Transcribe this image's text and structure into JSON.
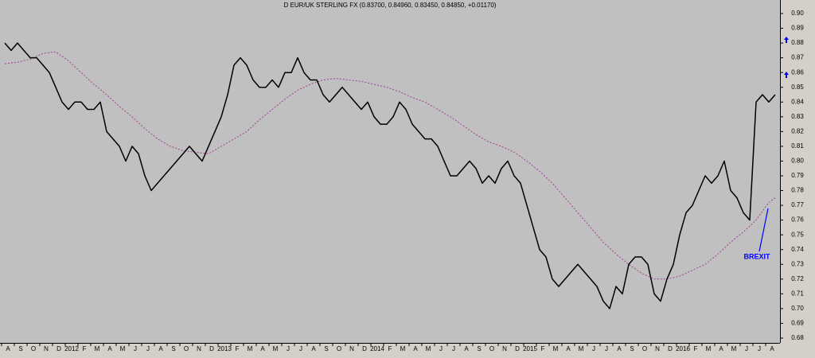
{
  "chart_data": {
    "type": "line",
    "title": "D EUR/UK STERLING FX (0.83700, 0.84960, 0.83450, 0.84850, +0.01170)",
    "annotation": "BREXIT",
    "categories": [
      "A",
      null,
      "S",
      null,
      "O",
      null,
      "N",
      null,
      "D",
      null,
      "2012",
      null,
      "F",
      null,
      "M",
      null,
      "A",
      null,
      "M",
      null,
      "J",
      null,
      "J",
      null,
      "A",
      null,
      "S",
      null,
      "O",
      null,
      "N",
      null,
      "D",
      null,
      "2013",
      null,
      "F",
      null,
      "M",
      null,
      "A",
      null,
      "M",
      null,
      "J",
      null,
      "J",
      null,
      "A",
      null,
      "S",
      null,
      "O",
      null,
      "N",
      null,
      "D",
      null,
      "2014",
      null,
      "F",
      null,
      "M",
      null,
      "A",
      null,
      "M",
      null,
      "J",
      null,
      "J",
      null,
      "A",
      null,
      "S",
      null,
      "O",
      null,
      "N",
      null,
      "D",
      null,
      "2015",
      null,
      "F",
      null,
      "M",
      null,
      "A",
      null,
      "M",
      null,
      "J",
      null,
      "J",
      null,
      "A",
      null,
      "S",
      null,
      "O",
      null,
      "N",
      null,
      "D",
      null,
      "2016",
      null,
      "F",
      null,
      "M",
      null,
      "A",
      null,
      "M",
      null,
      "J",
      null,
      "J",
      null,
      "A",
      null
    ],
    "series": [
      {
        "color": "#000000",
        "style": "solid",
        "values": [
          0.88,
          0.875,
          0.88,
          0.875,
          0.87,
          0.87,
          0.865,
          0.86,
          0.85,
          0.84,
          0.835,
          0.84,
          0.84,
          0.835,
          0.835,
          0.84,
          0.82,
          0.815,
          0.81,
          0.8,
          0.81,
          0.805,
          0.79,
          0.78,
          0.785,
          0.79,
          0.795,
          0.8,
          0.805,
          0.81,
          0.805,
          0.8,
          0.81,
          0.82,
          0.83,
          0.845,
          0.865,
          0.87,
          0.865,
          0.855,
          0.85,
          0.85,
          0.855,
          0.85,
          0.86,
          0.86,
          0.87,
          0.86,
          0.855,
          0.855,
          0.845,
          0.84,
          0.845,
          0.85,
          0.845,
          0.84,
          0.835,
          0.84,
          0.83,
          0.825,
          0.825,
          0.83,
          0.84,
          0.835,
          0.825,
          0.82,
          0.815,
          0.815,
          0.81,
          0.8,
          0.79,
          0.79,
          0.795,
          0.8,
          0.795,
          0.785,
          0.79,
          0.785,
          0.795,
          0.8,
          0.79,
          0.785,
          0.77,
          0.755,
          0.74,
          0.735,
          0.72,
          0.715,
          0.72,
          0.725,
          0.73,
          0.725,
          0.72,
          0.715,
          0.705,
          0.7,
          0.715,
          0.71,
          0.73,
          0.735,
          0.735,
          0.73,
          0.71,
          0.705,
          0.72,
          0.73,
          0.75,
          0.765,
          0.77,
          0.78,
          0.79,
          0.785,
          0.79,
          0.8,
          0.78,
          0.775,
          0.765,
          0.76,
          0.84,
          0.845,
          0.84,
          0.845
        ]
      },
      {
        "color": "#a0409a",
        "style": "dotted",
        "values": [
          0.866,
          0.8665,
          0.867,
          0.868,
          0.869,
          0.871,
          0.873,
          0.8735,
          0.874,
          0.871,
          0.868,
          0.864,
          0.86,
          0.856,
          0.852,
          0.8485,
          0.845,
          0.841,
          0.837,
          0.8335,
          0.83,
          0.826,
          0.822,
          0.8185,
          0.815,
          0.8125,
          0.81,
          0.8085,
          0.807,
          0.8065,
          0.806,
          0.8055,
          0.805,
          0.8075,
          0.81,
          0.8125,
          0.815,
          0.8175,
          0.82,
          0.824,
          0.828,
          0.8315,
          0.835,
          0.8385,
          0.842,
          0.845,
          0.848,
          0.85,
          0.852,
          0.8535,
          0.855,
          0.8555,
          0.856,
          0.8555,
          0.855,
          0.8545,
          0.854,
          0.853,
          0.852,
          0.851,
          0.85,
          0.8485,
          0.847,
          0.845,
          0.843,
          0.8415,
          0.84,
          0.8375,
          0.835,
          0.8325,
          0.83,
          0.827,
          0.824,
          0.821,
          0.818,
          0.8155,
          0.813,
          0.8115,
          0.81,
          0.808,
          0.806,
          0.803,
          0.8,
          0.7965,
          0.793,
          0.789,
          0.785,
          0.78,
          0.775,
          0.77,
          0.765,
          0.76,
          0.755,
          0.75,
          0.745,
          0.741,
          0.737,
          0.7335,
          0.73,
          0.727,
          0.724,
          0.722,
          0.72,
          0.72,
          0.72,
          0.721,
          0.722,
          0.724,
          0.726,
          0.728,
          0.73,
          0.7335,
          0.737,
          0.741,
          0.745,
          0.7485,
          0.752,
          0.756,
          0.76,
          0.766,
          0.772,
          0.775
        ]
      }
    ],
    "ylim": [
      0.68,
      0.9
    ],
    "yticks": [
      0.68,
      0.69,
      {
        "value": 0.7,
        "label": "0.70"
      },
      0.71,
      0.72,
      0.73,
      0.74,
      0.75,
      0.76,
      0.77,
      0.78,
      0.79,
      {
        "value": 0.8,
        "label": "0.80"
      },
      0.81,
      0.82,
      0.83,
      0.84,
      0.85,
      0.86,
      0.87,
      0.88,
      0.89,
      {
        "value": 0.9,
        "label": "0.90"
      }
    ],
    "grid": false
  }
}
